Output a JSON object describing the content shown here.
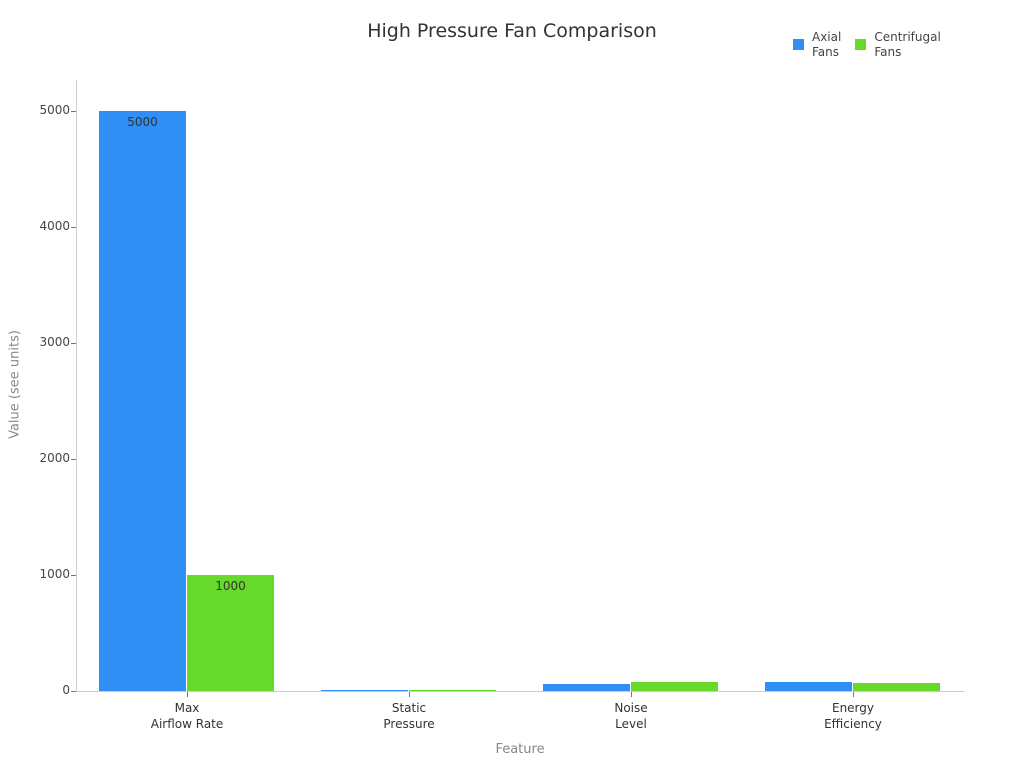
{
  "chart_data": {
    "type": "bar",
    "title": "High Pressure Fan Comparison",
    "xlabel": "Feature",
    "ylabel": "Value (see units)",
    "categories": [
      "Max\nAirflow Rate",
      "Static\nPressure",
      "Noise\nLevel",
      "Energy\nEfficiency"
    ],
    "series": [
      {
        "name": "Axial\nFans",
        "color": "#2f8ff5",
        "values": [
          5000,
          1,
          60,
          75
        ],
        "labels": [
          "5000",
          "",
          "",
          ""
        ]
      },
      {
        "name": "Centrifugal\nFans",
        "color": "#66d92a",
        "values": [
          1000,
          10,
          75,
          65
        ],
        "labels": [
          "1000",
          "",
          "",
          ""
        ]
      }
    ],
    "ylim": [
      0,
      5250
    ],
    "yticks": [
      0,
      1000,
      2000,
      3000,
      4000,
      5000
    ],
    "ytick_labels": [
      "0",
      "1000",
      "2000",
      "3000",
      "4000",
      "5000"
    ],
    "grid": false,
    "legend_position": "top-right"
  }
}
